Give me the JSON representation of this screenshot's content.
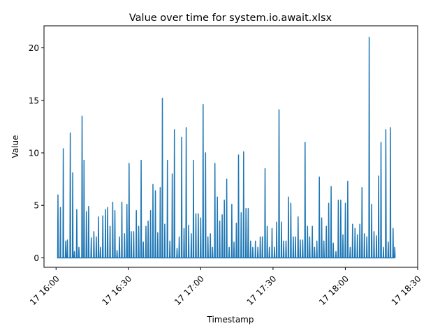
{
  "chart_data": {
    "type": "line",
    "title": "Value over time for system.io.await.xlsx",
    "xlabel": "Timestamp",
    "ylabel": "Value",
    "x_unit": "minutes since 17 16:00",
    "xlim": [
      -5,
      150
    ],
    "ylim": [
      -0.9,
      22.1
    ],
    "x_ticks": [
      {
        "value": 0,
        "label": "17 16:00"
      },
      {
        "value": 30,
        "label": "17 16:30"
      },
      {
        "value": 60,
        "label": "17 17:00"
      },
      {
        "value": 90,
        "label": "17 17:30"
      },
      {
        "value": 120,
        "label": "17 18:00"
      },
      {
        "value": 150,
        "label": "17 18:30"
      }
    ],
    "y_ticks": [
      {
        "value": 0,
        "label": "0"
      },
      {
        "value": 5,
        "label": "5"
      },
      {
        "value": 10,
        "label": "10"
      },
      {
        "value": 15,
        "label": "15"
      },
      {
        "value": 20,
        "label": "20"
      }
    ],
    "line_color": "#1f77b4",
    "baseline": 0,
    "spikes": [
      [
        0.8,
        6.0
      ],
      [
        1.8,
        4.8
      ],
      [
        3.0,
        10.4
      ],
      [
        4.0,
        1.6
      ],
      [
        4.7,
        1.7
      ],
      [
        5.9,
        11.9
      ],
      [
        6.9,
        8.1
      ],
      [
        7.6,
        0.6
      ],
      [
        8.6,
        4.6
      ],
      [
        9.5,
        1.0
      ],
      [
        10.8,
        13.5
      ],
      [
        11.6,
        9.3
      ],
      [
        12.6,
        4.4
      ],
      [
        13.5,
        4.9
      ],
      [
        14.6,
        1.9
      ],
      [
        15.7,
        2.5
      ],
      [
        16.7,
        2.0
      ],
      [
        17.6,
        3.9
      ],
      [
        18.4,
        1.0
      ],
      [
        19.4,
        4.0
      ],
      [
        20.5,
        4.6
      ],
      [
        21.4,
        4.8
      ],
      [
        22.4,
        3.0
      ],
      [
        23.5,
        5.3
      ],
      [
        24.4,
        4.5
      ],
      [
        25.3,
        0.7
      ],
      [
        26.3,
        2.0
      ],
      [
        27.3,
        5.3
      ],
      [
        28.4,
        2.3
      ],
      [
        29.4,
        5.1
      ],
      [
        30.3,
        9.0
      ],
      [
        31.2,
        2.5
      ],
      [
        32.2,
        2.5
      ],
      [
        33.3,
        4.5
      ],
      [
        34.3,
        3.0
      ],
      [
        35.3,
        9.3
      ],
      [
        36.2,
        1.5
      ],
      [
        37.3,
        3.0
      ],
      [
        38.2,
        3.5
      ],
      [
        39.2,
        4.5
      ],
      [
        40.2,
        7.0
      ],
      [
        41.2,
        6.4
      ],
      [
        42.2,
        2.4
      ],
      [
        43.2,
        6.7
      ],
      [
        44.1,
        15.2
      ],
      [
        45.1,
        3.2
      ],
      [
        46.2,
        9.3
      ],
      [
        47.2,
        1.6
      ],
      [
        48.2,
        8.0
      ],
      [
        49.1,
        12.2
      ],
      [
        50.2,
        0.9
      ],
      [
        51.1,
        2.0
      ],
      [
        52.1,
        11.5
      ],
      [
        53.1,
        2.8
      ],
      [
        54.0,
        12.4
      ],
      [
        55.0,
        3.1
      ],
      [
        56.1,
        2.3
      ],
      [
        57.0,
        9.3
      ],
      [
        58.0,
        4.2
      ],
      [
        59.0,
        4.2
      ],
      [
        60.0,
        3.8
      ],
      [
        61.0,
        14.6
      ],
      [
        62.0,
        10.0
      ],
      [
        63.0,
        2.0
      ],
      [
        64.0,
        2.3
      ],
      [
        64.9,
        1.0
      ],
      [
        65.9,
        9.0
      ],
      [
        66.9,
        5.8
      ],
      [
        67.9,
        3.5
      ],
      [
        68.9,
        4.1
      ],
      [
        69.8,
        5.5
      ],
      [
        70.8,
        7.5
      ],
      [
        71.8,
        1.0
      ],
      [
        72.9,
        5.1
      ],
      [
        73.8,
        1.5
      ],
      [
        74.8,
        3.3
      ],
      [
        75.7,
        9.8
      ],
      [
        76.8,
        4.3
      ],
      [
        77.8,
        10.1
      ],
      [
        78.8,
        4.7
      ],
      [
        79.7,
        4.7
      ],
      [
        80.7,
        1.6
      ],
      [
        81.6,
        1.0
      ],
      [
        82.7,
        1.6
      ],
      [
        83.7,
        1.0
      ],
      [
        84.7,
        2.0
      ],
      [
        85.6,
        2.0
      ],
      [
        86.7,
        8.5
      ],
      [
        87.6,
        3.0
      ],
      [
        88.5,
        1.0
      ],
      [
        89.6,
        2.8
      ],
      [
        90.6,
        1.0
      ],
      [
        91.5,
        3.4
      ],
      [
        92.5,
        14.1
      ],
      [
        93.5,
        3.4
      ],
      [
        94.4,
        1.6
      ],
      [
        95.4,
        1.6
      ],
      [
        96.4,
        5.8
      ],
      [
        97.4,
        5.2
      ],
      [
        98.4,
        2.0
      ],
      [
        99.3,
        2.0
      ],
      [
        100.4,
        3.9
      ],
      [
        101.3,
        1.7
      ],
      [
        102.3,
        1.7
      ],
      [
        103.3,
        11.0
      ],
      [
        104.3,
        3.0
      ],
      [
        105.2,
        2.0
      ],
      [
        106.3,
        3.0
      ],
      [
        107.2,
        1.0
      ],
      [
        108.2,
        1.6
      ],
      [
        109.2,
        7.7
      ],
      [
        110.2,
        3.8
      ],
      [
        111.1,
        1.6
      ],
      [
        112.1,
        3.0
      ],
      [
        113.1,
        5.2
      ],
      [
        114.1,
        6.8
      ],
      [
        115.0,
        1.4
      ],
      [
        116.1,
        0.6
      ],
      [
        117.1,
        5.5
      ],
      [
        118.1,
        5.5
      ],
      [
        119.0,
        2.2
      ],
      [
        120.0,
        5.2
      ],
      [
        121.0,
        7.3
      ],
      [
        122.0,
        1.0
      ],
      [
        123.0,
        3.2
      ],
      [
        124.0,
        2.8
      ],
      [
        125.0,
        2.2
      ],
      [
        126.0,
        3.2
      ],
      [
        126.9,
        6.7
      ],
      [
        127.9,
        2.3
      ],
      [
        128.9,
        2.0
      ],
      [
        129.9,
        21.0
      ],
      [
        130.9,
        5.1
      ],
      [
        131.9,
        2.5
      ],
      [
        132.9,
        2.1
      ],
      [
        133.8,
        7.8
      ],
      [
        134.8,
        11.0
      ],
      [
        135.8,
        1.0
      ],
      [
        136.8,
        12.2
      ],
      [
        137.8,
        1.5
      ],
      [
        138.7,
        12.4
      ],
      [
        139.8,
        2.8
      ],
      [
        140.5,
        1.0
      ]
    ]
  }
}
